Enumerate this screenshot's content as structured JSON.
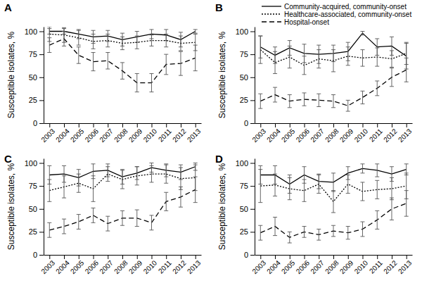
{
  "chart_data": [
    {
      "type": "line",
      "title": "A",
      "ylabel": "Susceptible isolates, %",
      "x": [
        2003,
        2004,
        2005,
        2006,
        2007,
        2008,
        2009,
        2010,
        2011,
        2012,
        2013
      ],
      "xlim": [
        2002.6,
        2013.4
      ],
      "xticks": [
        2003,
        2004,
        2005,
        2006,
        2007,
        2008,
        2009,
        2010,
        2011,
        2012,
        2013
      ],
      "ylim": [
        0,
        105
      ],
      "yticks": [
        0,
        25,
        50,
        75,
        100
      ],
      "series": [
        {
          "color": "#000000",
          "line_style": "solid",
          "values": [
            100,
            100,
            97,
            94,
            95,
            91,
            94,
            97,
            96,
            91,
            100
          ],
          "errors": [
            3,
            3,
            5,
            7,
            6,
            7,
            6,
            5,
            6,
            8,
            2
          ]
        },
        {
          "color": "#000000",
          "line_style": "dotted",
          "values": [
            97,
            96,
            93,
            89,
            90,
            87,
            88,
            90,
            90,
            87,
            88
          ],
          "errors": [
            8,
            8,
            8,
            8,
            7,
            7,
            7,
            6,
            7,
            8,
            9
          ]
        },
        {
          "color": "#000000",
          "line_style": "dashed",
          "values": [
            85,
            92,
            74,
            67,
            68,
            57,
            44,
            44,
            64,
            65,
            71
          ],
          "errors": [
            8,
            8,
            9,
            10,
            9,
            9,
            10,
            10,
            11,
            13,
            14
          ]
        }
      ]
    },
    {
      "type": "line",
      "title": "B",
      "ylabel": "Susceptible isolates, %",
      "legend": "upper right",
      "x": [
        2003,
        2004,
        2005,
        2006,
        2007,
        2008,
        2009,
        2010,
        2011,
        2012,
        2013
      ],
      "xlim": [
        2002.6,
        2013.4
      ],
      "xticks": [
        2003,
        2004,
        2005,
        2006,
        2007,
        2008,
        2009,
        2010,
        2011,
        2012,
        2013
      ],
      "ylim": [
        0,
        105
      ],
      "yticks": [
        0,
        25,
        50,
        75,
        100
      ],
      "series": [
        {
          "name": "Community-acquired, community-onset",
          "color": "#000000",
          "line_style": "solid",
          "values": [
            83,
            74,
            82,
            76,
            75,
            76,
            78,
            98,
            83,
            84,
            73
          ],
          "errors": [
            12,
            9,
            8,
            10,
            10,
            9,
            10,
            2,
            9,
            10,
            14
          ]
        },
        {
          "name": "Healthcare-associated, community-onset",
          "color": "#000000",
          "line_style": "dotted",
          "values": [
            80,
            66,
            72,
            63,
            70,
            68,
            73,
            71,
            72,
            70,
            76
          ],
          "errors": [
            15,
            12,
            12,
            10,
            10,
            12,
            10,
            9,
            10,
            9,
            12
          ]
        },
        {
          "name": "Hospital-onset",
          "color": "#000000",
          "line_style": "dashed",
          "values": [
            24,
            31,
            24,
            26,
            25,
            24,
            19,
            28,
            38,
            50,
            58
          ],
          "errors": [
            8,
            8,
            7,
            7,
            7,
            7,
            6,
            7,
            8,
            10,
            13
          ]
        }
      ]
    },
    {
      "type": "line",
      "title": "C",
      "ylabel": "Susceptible isolates, %",
      "x": [
        2003,
        2004,
        2005,
        2006,
        2007,
        2008,
        2009,
        2010,
        2011,
        2012,
        2013
      ],
      "xlim": [
        2002.6,
        2013.4
      ],
      "xticks": [
        2003,
        2004,
        2005,
        2006,
        2007,
        2008,
        2009,
        2010,
        2011,
        2012,
        2013
      ],
      "ylim": [
        0,
        105
      ],
      "yticks": [
        0,
        25,
        50,
        75,
        100
      ],
      "series": [
        {
          "color": "#000000",
          "line_style": "solid",
          "values": [
            87,
            88,
            84,
            91,
            92,
            85,
            89,
            95,
            92,
            90,
            96
          ],
          "errors": [
            10,
            9,
            9,
            8,
            7,
            8,
            7,
            5,
            7,
            8,
            4
          ]
        },
        {
          "color": "#000000",
          "line_style": "dotted",
          "values": [
            70,
            74,
            78,
            72,
            88,
            82,
            86,
            88,
            88,
            83,
            84
          ],
          "errors": [
            12,
            12,
            10,
            14,
            8,
            10,
            10,
            9,
            10,
            12,
            14
          ]
        },
        {
          "color": "#000000",
          "line_style": "dashed",
          "values": [
            27,
            31,
            36,
            43,
            34,
            40,
            40,
            35,
            58,
            63,
            71
          ],
          "errors": [
            8,
            8,
            8,
            8,
            8,
            8,
            9,
            8,
            10,
            11,
            14
          ]
        }
      ]
    },
    {
      "type": "line",
      "title": "D",
      "ylabel": "Susceptible isolates, %",
      "x": [
        2003,
        2004,
        2005,
        2006,
        2007,
        2008,
        2009,
        2010,
        2011,
        2012,
        2013
      ],
      "xlim": [
        2002.6,
        2013.4
      ],
      "xticks": [
        2003,
        2004,
        2005,
        2006,
        2007,
        2008,
        2009,
        2010,
        2011,
        2012,
        2013
      ],
      "ylim": [
        0,
        105
      ],
      "yticks": [
        0,
        25,
        50,
        75,
        100
      ],
      "series": [
        {
          "color": "#000000",
          "line_style": "solid",
          "values": [
            87,
            87,
            77,
            87,
            80,
            79,
            89,
            94,
            92,
            88,
            93
          ],
          "errors": [
            10,
            10,
            10,
            9,
            8,
            10,
            7,
            5,
            7,
            8,
            6
          ]
        },
        {
          "color": "#000000",
          "line_style": "dotted",
          "values": [
            75,
            76,
            72,
            70,
            77,
            58,
            77,
            69,
            71,
            72,
            75
          ],
          "errors": [
            18,
            12,
            12,
            12,
            10,
            12,
            10,
            10,
            10,
            12,
            14
          ]
        },
        {
          "color": "#000000",
          "line_style": "dashed",
          "values": [
            24,
            31,
            19,
            25,
            22,
            26,
            24,
            28,
            38,
            50,
            56
          ],
          "errors": [
            8,
            10,
            6,
            6,
            6,
            6,
            7,
            8,
            10,
            12,
            14
          ]
        }
      ]
    }
  ]
}
